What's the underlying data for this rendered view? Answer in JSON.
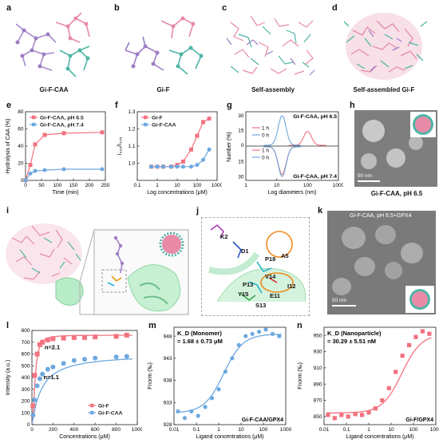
{
  "panels": {
    "a": {
      "label": "a",
      "caption": "Gi-F-CAA"
    },
    "b": {
      "label": "b",
      "caption": "Gi-F"
    },
    "c": {
      "label": "c",
      "caption": "Self-assembly"
    },
    "d": {
      "label": "d",
      "caption": "Self-assembled Gi-F"
    },
    "e": {
      "label": "e"
    },
    "f": {
      "label": "f"
    },
    "g": {
      "label": "g"
    },
    "h": {
      "label": "h",
      "caption": "Gi-F-CAA, pH 6.5",
      "scale_bar": "50 nm"
    },
    "i": {
      "label": "i"
    },
    "j": {
      "label": "j",
      "residues": [
        "K2",
        "D1",
        "P18",
        "A5",
        "V14",
        "P13",
        "I12",
        "Y15",
        "E11",
        "S13"
      ]
    },
    "k": {
      "label": "k",
      "caption": "Gi-F-CAA, pH 6.5+GPX4",
      "scale_bar": "50 nm"
    },
    "l": {
      "label": "l"
    },
    "m": {
      "label": "m"
    },
    "n": {
      "label": "n"
    }
  },
  "colors": {
    "red": "#f2727f",
    "blue": "#6ea8e0",
    "pink": "#e88aa8",
    "teal": "#4fb5a6",
    "purple": "#9d7cc4",
    "green": "#8fd6a8"
  },
  "chart_data": [
    {
      "id": "e",
      "type": "line",
      "xlabel": "Time (min)",
      "ylabel": "Hydrolysis of CAA (%)",
      "xlim": [
        0,
        250
      ],
      "ylim": [
        0,
        80
      ],
      "xticks": [
        "0",
        "50",
        "100",
        "150",
        "200",
        "250"
      ],
      "yticks": [
        "0",
        "20",
        "40",
        "60",
        "80"
      ],
      "series": [
        {
          "name": "Gi-F-CAA, pH 6.5",
          "color": "#f2727f",
          "x": [
            0,
            15,
            30,
            60,
            120,
            240
          ],
          "y": [
            0,
            18,
            42,
            53,
            55,
            56
          ]
        },
        {
          "name": "Gi-F-CAA, pH 7.4",
          "color": "#6ea8e0",
          "x": [
            0,
            15,
            30,
            60,
            120,
            240
          ],
          "y": [
            0,
            8,
            11,
            12,
            13,
            13
          ]
        }
      ]
    },
    {
      "id": "f",
      "type": "scatter",
      "xlabel": "Log concentrations (μM)",
      "ylabel": "I₃₃₉/I₃₃₅",
      "xlog": true,
      "xlim": [
        0.1,
        1000
      ],
      "ylim": [
        0.9,
        1.3
      ],
      "xticks": [
        "0.1",
        "1",
        "10",
        "100",
        "1000"
      ],
      "yticks": [
        "1.0",
        "1.1",
        "1.2",
        "1.3"
      ],
      "series": [
        {
          "name": "Gi-F",
          "color": "#f2727f",
          "x": [
            0.5,
            1,
            2,
            5,
            10,
            20,
            50,
            100,
            200,
            400
          ],
          "y": [
            0.98,
            0.98,
            0.98,
            0.98,
            0.99,
            1.01,
            1.08,
            1.16,
            1.24,
            1.26
          ]
        },
        {
          "name": "Gi-F-CAA",
          "color": "#6ea8e0",
          "x": [
            0.5,
            1,
            2,
            5,
            10,
            20,
            50,
            100,
            200,
            400
          ],
          "y": [
            0.98,
            0.98,
            0.98,
            0.98,
            0.98,
            0.98,
            0.98,
            0.99,
            1.02,
            1.08
          ]
        }
      ]
    },
    {
      "id": "g",
      "type": "line",
      "xlabel": "Log diameters (nm)",
      "ylabel": "Number (%)",
      "xlog": true,
      "xlim": [
        1,
        1000
      ],
      "xticks": [
        "1",
        "10",
        "100",
        "1000"
      ],
      "top": {
        "title": "Gi-F-CAA, pH 6.5",
        "yticks": [
          "0",
          "15",
          "30"
        ]
      },
      "bottom": {
        "title": "Gi-F-CAA, pH 7.4",
        "yticks": [
          "15",
          "30"
        ]
      },
      "legend": [
        "1 h",
        "0 h"
      ],
      "series": [
        {
          "name": "1 h",
          "panel": "top",
          "color": "#f2727f",
          "peak": 100,
          "height": 14
        },
        {
          "name": "0 h",
          "panel": "top",
          "color": "#6ea8e0",
          "peak": 15,
          "height": 30
        },
        {
          "name": "1 h",
          "panel": "bottom",
          "color": "#f2727f",
          "peak": 15,
          "height": 28
        },
        {
          "name": "0 h",
          "panel": "bottom",
          "color": "#6ea8e0",
          "peak": 15,
          "height": 30
        }
      ]
    },
    {
      "id": "l",
      "type": "scatter",
      "xlabel": "Concentrations (μM)",
      "ylabel": "Intensity (a.u.)",
      "xlim": [
        0,
        1000
      ],
      "ylim": [
        0,
        800
      ],
      "xticks": [
        "0",
        "200",
        "400",
        "600",
        "800",
        "1000"
      ],
      "yticks": [
        "0",
        "100",
        "200",
        "300",
        "400",
        "500",
        "600",
        "700",
        "800"
      ],
      "annotations": [
        "n=2.1",
        "n=1.1"
      ],
      "series": [
        {
          "name": "Gi-F",
          "color": "#f2727f",
          "x": [
            10,
            25,
            50,
            75,
            100,
            150,
            200,
            300,
            400,
            500,
            600,
            800,
            900
          ],
          "y": [
            160,
            420,
            600,
            680,
            700,
            720,
            730,
            735,
            740,
            740,
            745,
            750,
            760
          ]
        },
        {
          "name": "Gi-F-CAA",
          "color": "#6ea8e0",
          "x": [
            10,
            25,
            50,
            75,
            100,
            150,
            200,
            300,
            400,
            500,
            600,
            800,
            900
          ],
          "y": [
            80,
            210,
            330,
            390,
            430,
            470,
            490,
            520,
            545,
            555,
            565,
            575,
            580
          ]
        }
      ]
    },
    {
      "id": "m",
      "type": "scatter",
      "title": "K_D (Monomer)",
      "value": "= 1.68 ± 0.73 μM",
      "xlabel": "Ligand concentrations (μM)",
      "ylabel": "Fnorm (‰)",
      "xlog": true,
      "xlim": [
        0.01,
        1000
      ],
      "ylim": [
        928,
        950
      ],
      "xticks": [
        "0.01",
        "0.1",
        "1",
        "10",
        "100",
        "1000"
      ],
      "yticks": [
        "928",
        "933",
        "938",
        "943",
        "948"
      ],
      "label": "Gi-F-CAA/GPX4",
      "series": [
        {
          "name": "Gi-F-CAA/GPX4",
          "color": "#6ea8e0",
          "x": [
            0.015,
            0.03,
            0.06,
            0.12,
            0.25,
            0.5,
            1,
            2,
            4,
            8,
            16,
            32,
            64,
            128,
            256,
            512
          ],
          "y": [
            931,
            929.5,
            931,
            930,
            932,
            934,
            936,
            940,
            943,
            946,
            948,
            948.5,
            949,
            949.5,
            948.5,
            948
          ]
        }
      ]
    },
    {
      "id": "n",
      "type": "scatter",
      "title": "K_D (Nanoparticle)",
      "value": "= 30.29 ± 5.51 nM",
      "xlabel": "Ligand concentrations (μM)",
      "ylabel": "Fnorm (‰)",
      "xlog": true,
      "xlim": [
        0.01,
        1000
      ],
      "ylim": [
        840,
        960
      ],
      "xticks": [
        "0.01",
        "0.1",
        "1",
        "10",
        "100",
        "1000"
      ],
      "yticks": [
        "850",
        "870",
        "890",
        "910",
        "930",
        "950"
      ],
      "label": "Gi-F/GPX4",
      "series": [
        {
          "name": "Gi-F/GPX4",
          "color": "#f2727f",
          "x": [
            0.015,
            0.03,
            0.06,
            0.12,
            0.25,
            0.5,
            1,
            2,
            4,
            8,
            16,
            32,
            64,
            128,
            256,
            512
          ],
          "y": [
            852,
            848,
            852,
            850,
            853,
            852,
            855,
            860,
            870,
            885,
            905,
            925,
            938,
            948,
            955,
            952
          ]
        }
      ]
    }
  ]
}
